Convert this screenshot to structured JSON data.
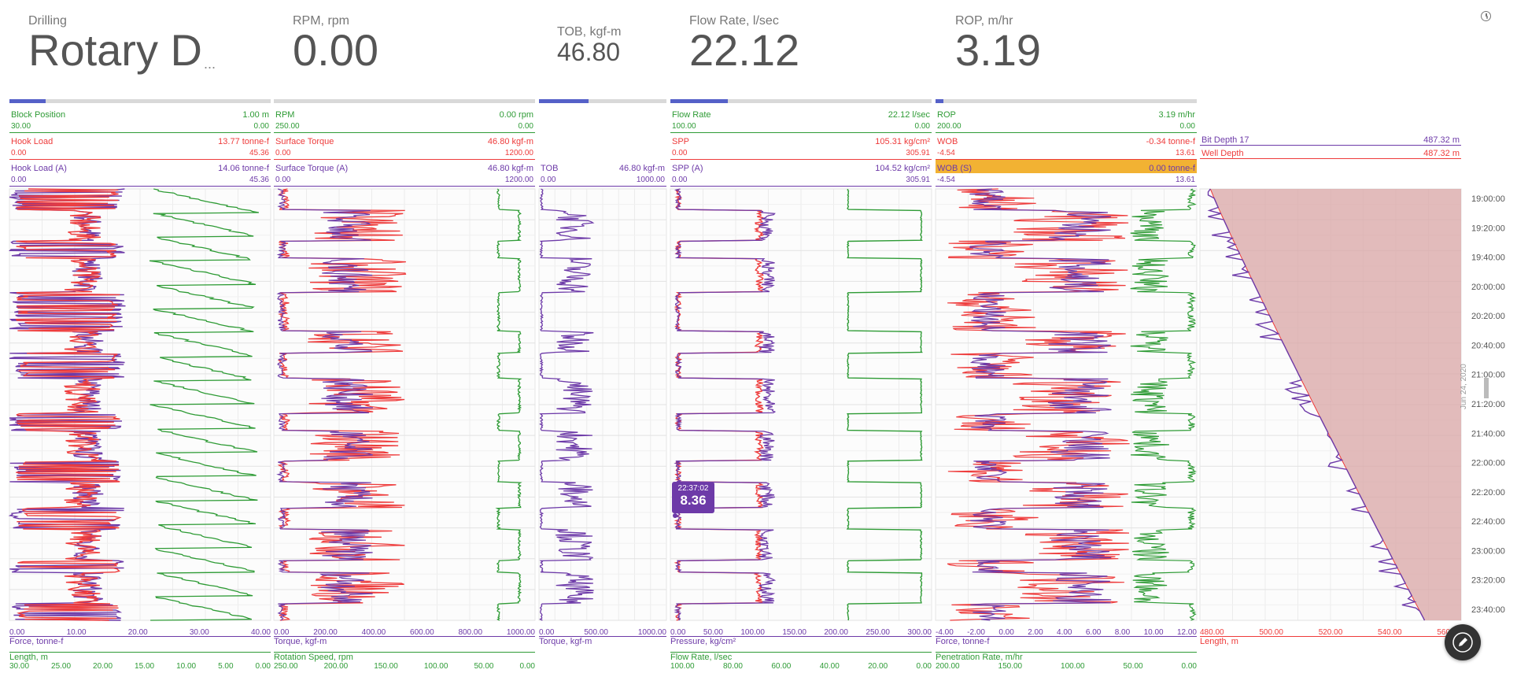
{
  "kpis": [
    {
      "label": "Drilling",
      "value": "Rotary D",
      "suffix": "..."
    },
    {
      "label": "RPM, rpm",
      "value": "0.00"
    },
    {
      "label": "TOB, kgf-m",
      "value": "46.80"
    },
    {
      "label": "Flow Rate, l/sec",
      "value": "22.12"
    },
    {
      "label": "ROP, m/hr",
      "value": "3.19"
    }
  ],
  "tracks": [
    {
      "progress": 0.14,
      "rows": [
        {
          "name": "Block Position",
          "value": "1.00 m",
          "color": "green",
          "min": "30.00",
          "max": "0.00"
        },
        {
          "name": "Hook Load",
          "value": "13.77 tonne-f",
          "color": "red",
          "min": "0.00",
          "max": "45.36"
        },
        {
          "name": "Hook Load  (A)",
          "value": "14.06 tonne-f",
          "color": "purple",
          "min": "0.00",
          "max": "45.36"
        }
      ],
      "footer_top": {
        "label": "Force, tonne-f",
        "color": "purple",
        "ticks": [
          "0.00",
          "10.00",
          "20.00",
          "30.00",
          "40.00"
        ]
      },
      "footer_bottom": {
        "label": "Length, m",
        "color": "green",
        "ticks": [
          "30.00",
          "25.00",
          "20.00",
          "15.00",
          "10.00",
          "5.00",
          "0.00"
        ]
      }
    },
    {
      "progress": 0.0,
      "rows": [
        {
          "name": "RPM",
          "value": "0.00 rpm",
          "color": "green",
          "min": "250.00",
          "max": "0.00"
        },
        {
          "name": "Surface Torque",
          "value": "46.80 kgf-m",
          "color": "red",
          "min": "0.00",
          "max": "1200.00"
        },
        {
          "name": "Surface Torque  (A)",
          "value": "46.80 kgf-m",
          "color": "purple",
          "min": "0.00",
          "max": "1200.00"
        }
      ],
      "footer_top": {
        "label": "Torque, kgf-m",
        "color": "purple",
        "ticks": [
          "0.00",
          "200.00",
          "400.00",
          "600.00",
          "800.00",
          "1000.00"
        ]
      },
      "footer_bottom": {
        "label": "Rotation Speed, rpm",
        "color": "green",
        "ticks": [
          "250.00",
          "200.00",
          "150.00",
          "100.00",
          "50.00",
          "0.00"
        ]
      }
    },
    {
      "progress": 0.39,
      "rows": [
        {
          "name": "TOB",
          "value": "46.80 kgf-m",
          "color": "purple",
          "min": "0.00",
          "max": "1000.00"
        }
      ],
      "footer_top": {
        "label": "Torque, kgf-m",
        "color": "purple",
        "ticks": [
          "0.00",
          "500.00",
          "1000.00"
        ]
      },
      "footer_bottom": null
    },
    {
      "progress": 0.22,
      "rows": [
        {
          "name": "Flow Rate",
          "value": "22.12 l/sec",
          "color": "green",
          "min": "100.00",
          "max": "0.00"
        },
        {
          "name": "SPP",
          "value": "105.31 kg/cm²",
          "color": "red",
          "min": "0.00",
          "max": "305.91"
        },
        {
          "name": "SPP (A)",
          "value": "104.52 kg/cm²",
          "color": "purple",
          "min": "0.00",
          "max": "305.91"
        }
      ],
      "footer_top": {
        "label": "Pressure, kg/cm²",
        "color": "purple",
        "ticks": [
          "0.00",
          "50.00",
          "100.00",
          "150.00",
          "200.00",
          "250.00",
          "300.00"
        ]
      },
      "footer_bottom": {
        "label": "Flow Rate, l/sec",
        "color": "green",
        "ticks": [
          "100.00",
          "80.00",
          "60.00",
          "40.00",
          "20.00",
          "0.00"
        ]
      },
      "tooltip": {
        "time": "22:37:02",
        "value": "8.36"
      }
    },
    {
      "progress": 0.03,
      "rows": [
        {
          "name": "ROP",
          "value": "3.19 m/hr",
          "color": "green",
          "min": "200.00",
          "max": "0.00"
        },
        {
          "name": "WOB",
          "value": "-0.34 tonne-f",
          "color": "red",
          "min": "-4.54",
          "max": "13.61"
        },
        {
          "name": "WOB (S)",
          "value": "0.00 tonne-f",
          "color": "purple",
          "min": "-4.54",
          "max": "13.61",
          "highlight": true
        }
      ],
      "footer_top": {
        "label": "Force, tonne-f",
        "color": "purple",
        "ticks": [
          "-4.00",
          "-2.00",
          "0.00",
          "2.00",
          "4.00",
          "6.00",
          "8.00",
          "10.00",
          "12.00"
        ]
      },
      "footer_bottom": {
        "label": "Penetration Rate, m/hr",
        "color": "green",
        "ticks": [
          "200.00",
          "150.00",
          "100.00",
          "50.00",
          "0.00"
        ]
      }
    },
    {
      "progress": null,
      "rows": [
        {
          "name": "Bit Depth 17",
          "value": "487.32 m",
          "color": "purple"
        },
        {
          "name": "Well Depth",
          "value": "487.32 m",
          "color": "red"
        }
      ],
      "footer_top": {
        "label": "Length, m",
        "color": "red",
        "ticks": [
          "480.00",
          "500.00",
          "520.00",
          "540.00",
          "560.00"
        ]
      },
      "footer_bottom": null
    }
  ],
  "time_axis": {
    "labels": [
      "19:00:00",
      "19:20:00",
      "19:40:00",
      "20:00:00",
      "20:20:00",
      "20:40:00",
      "21:00:00",
      "21:20:00",
      "21:40:00",
      "22:00:00",
      "22:20:00",
      "22:40:00",
      "23:00:00",
      "23:20:00",
      "23:40:00"
    ],
    "date": "Jun 24, 2020"
  },
  "icons": {
    "clock": "clock-icon",
    "edit": "pencil-icon"
  },
  "colors": {
    "green": "#2e9b35",
    "red": "#ee3b3b",
    "purple": "#6d3aa8",
    "progress": "#5561c8",
    "wob_highlight": "#f2b233",
    "depth_fill": "#d9a5a5"
  }
}
